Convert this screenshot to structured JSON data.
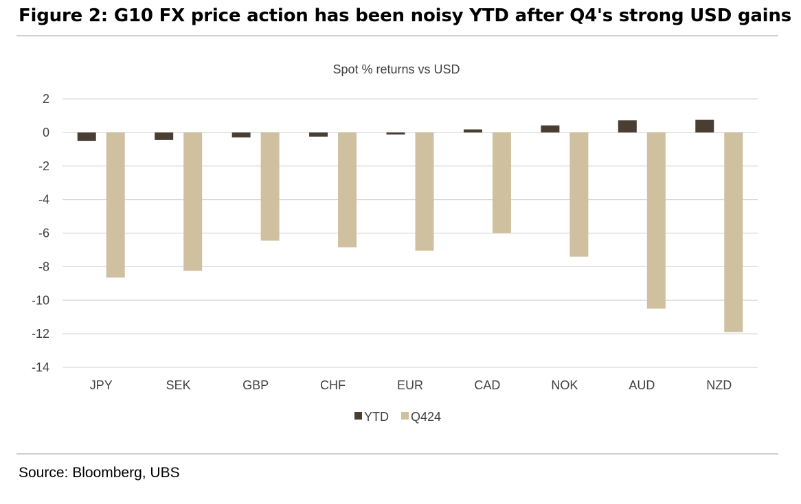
{
  "figure": {
    "title": "Figure 2: G10 FX price action has been noisy YTD after Q4's strong USD gains",
    "source": "Source: Bloomberg, UBS"
  },
  "chart_data": {
    "type": "bar",
    "title": "Spot % returns vs USD",
    "xlabel": "",
    "ylabel": "",
    "categories": [
      "JPY",
      "SEK",
      "GBP",
      "CHF",
      "EUR",
      "CAD",
      "NOK",
      "AUD",
      "NZD"
    ],
    "series": [
      {
        "name": "YTD",
        "color": "#4a3e33",
        "values": [
          -0.5,
          -0.45,
          -0.3,
          -0.25,
          -0.12,
          0.18,
          0.42,
          0.72,
          0.75
        ]
      },
      {
        "name": "Q424",
        "color": "#cfc0a0",
        "values": [
          -8.65,
          -8.25,
          -6.45,
          -6.85,
          -7.05,
          -6.0,
          -7.4,
          -10.5,
          -11.9
        ]
      }
    ],
    "ylim": [
      -14,
      2
    ],
    "yticks": [
      2,
      0,
      -2,
      -4,
      -6,
      -8,
      -10,
      -12,
      -14
    ],
    "grid": true,
    "legend_position": "bottom"
  }
}
